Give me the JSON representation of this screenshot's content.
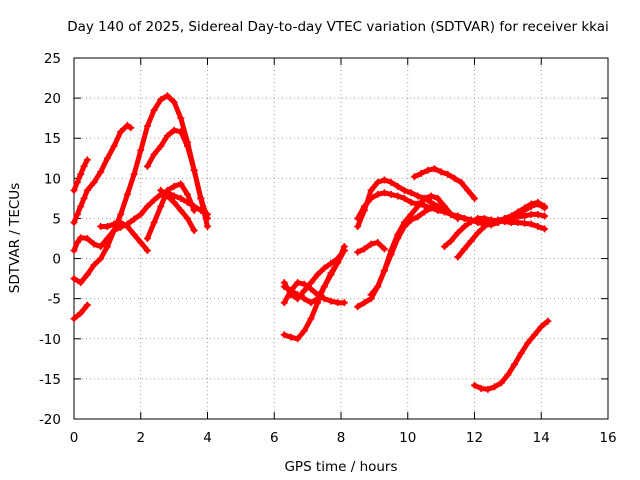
{
  "chart_data": {
    "type": "scatter",
    "title": "Day 140 of 2025, Sidereal Day-to-day VTEC variation (SDTVAR) for receiver kkai",
    "xlabel": "GPS time / hours",
    "ylabel": "SDTVAR / TECUs",
    "xlim": [
      0,
      16
    ],
    "ylim": [
      -20,
      25
    ],
    "xticks": [
      0,
      2,
      4,
      6,
      8,
      10,
      12,
      14,
      16
    ],
    "yticks": [
      -20,
      -15,
      -10,
      -5,
      0,
      5,
      10,
      15,
      20,
      25
    ],
    "grid": true,
    "color": "#ff0000",
    "series": [
      {
        "name": "s1",
        "x": [
          0.0,
          0.1,
          0.2,
          0.3,
          0.4
        ],
        "y": [
          8.5,
          9.5,
          10.5,
          11.5,
          12.3
        ]
      },
      {
        "name": "s2",
        "x": [
          0.0,
          0.1,
          0.2,
          0.3,
          0.4,
          0.6,
          0.8,
          1.0,
          1.2,
          1.4,
          1.6,
          1.7
        ],
        "y": [
          4.5,
          5.5,
          6.5,
          7.5,
          8.5,
          9.5,
          10.8,
          12.5,
          14.0,
          15.8,
          16.6,
          16.3
        ]
      },
      {
        "name": "s3",
        "x": [
          0.0,
          0.1,
          0.2,
          0.4,
          0.6,
          0.8,
          1.0,
          1.2,
          1.4,
          1.6,
          1.8,
          2.0,
          2.2,
          2.4,
          2.6,
          2.8,
          3.0,
          3.2,
          3.4,
          3.6,
          3.8,
          4.0
        ],
        "y": [
          1.0,
          2.0,
          2.6,
          2.5,
          1.8,
          1.5,
          2.5,
          3.5,
          3.9,
          4.3,
          4.9,
          5.5,
          6.5,
          7.3,
          8.0,
          8.2,
          7.8,
          7.5,
          7.0,
          6.5,
          6.0,
          5.5
        ]
      },
      {
        "name": "s4",
        "x": [
          0.0,
          0.2,
          0.4,
          0.6,
          0.8,
          1.0,
          1.2,
          1.4,
          1.6,
          1.8,
          2.0,
          2.2,
          2.4,
          2.6,
          2.8,
          3.0,
          3.2,
          3.4,
          3.6,
          3.8,
          4.0
        ],
        "y": [
          -2.5,
          -3.0,
          -2.0,
          -0.8,
          0.0,
          1.5,
          3.5,
          5.5,
          8.0,
          10.5,
          13.5,
          16.5,
          18.5,
          19.8,
          20.3,
          19.5,
          17.5,
          14.5,
          11.0,
          7.5,
          5.0
        ]
      },
      {
        "name": "s5",
        "x": [
          0.0,
          0.2,
          0.4
        ],
        "y": [
          -7.5,
          -6.8,
          -5.8
        ]
      },
      {
        "name": "s6",
        "x": [
          0.8,
          1.0,
          1.2,
          1.4,
          1.6,
          1.8,
          2.0,
          2.2
        ],
        "y": [
          4.0,
          4.0,
          4.3,
          4.5,
          4.0,
          3.0,
          2.0,
          1.0
        ]
      },
      {
        "name": "s7",
        "x": [
          2.2,
          2.4,
          2.6,
          2.8,
          3.0,
          3.2,
          3.4,
          3.6,
          3.8,
          4.0
        ],
        "y": [
          11.5,
          13.0,
          14.0,
          15.3,
          16.0,
          15.8,
          14.0,
          11.0,
          7.5,
          4.0
        ]
      },
      {
        "name": "s8",
        "x": [
          2.2,
          2.4,
          2.6,
          2.8,
          3.0,
          3.2,
          3.4,
          3.6
        ],
        "y": [
          2.5,
          4.5,
          6.5,
          8.5,
          9.0,
          9.3,
          8.0,
          6.0
        ]
      },
      {
        "name": "s9",
        "x": [
          2.6,
          2.8,
          3.0,
          3.2,
          3.4,
          3.6
        ],
        "y": [
          8.5,
          7.8,
          7.0,
          6.0,
          5.0,
          3.5
        ]
      },
      {
        "name": "s10",
        "x": [
          6.3,
          6.5,
          6.7,
          6.9,
          7.1,
          7.3,
          7.5,
          7.7,
          7.9,
          8.1
        ],
        "y": [
          -3.0,
          -4.5,
          -5.0,
          -4.0,
          -3.0,
          -2.0,
          -1.2,
          -0.6,
          0.0,
          1.0
        ]
      },
      {
        "name": "s11",
        "x": [
          6.3,
          6.5,
          6.7,
          6.9,
          7.1,
          7.3,
          7.5,
          7.7,
          7.9,
          8.1
        ],
        "y": [
          -5.5,
          -4.0,
          -3.0,
          -3.2,
          -3.8,
          -4.5,
          -5.0,
          -5.3,
          -5.5,
          -5.5
        ]
      },
      {
        "name": "s12",
        "x": [
          6.3,
          6.5,
          6.7,
          6.9,
          7.1,
          7.3,
          7.5,
          7.7,
          7.9,
          8.1
        ],
        "y": [
          -3.5,
          -4.0,
          -4.5,
          -5.0,
          -5.5,
          -5.0,
          -3.5,
          -2.0,
          -0.5,
          1.0
        ]
      },
      {
        "name": "s13",
        "x": [
          6.3,
          6.5,
          6.7,
          6.9,
          7.1,
          7.3,
          7.5,
          7.7,
          7.9,
          8.1
        ],
        "y": [
          -9.5,
          -9.8,
          -10.0,
          -9.0,
          -7.5,
          -5.5,
          -3.5,
          -1.8,
          -0.5,
          1.5
        ]
      },
      {
        "name": "s14",
        "x": [
          8.5,
          8.7,
          8.9,
          9.1,
          9.3,
          9.5,
          9.7,
          9.9,
          10.1,
          10.3,
          10.5,
          10.7,
          10.9,
          11.1,
          11.3,
          11.5,
          11.7,
          11.9,
          12.1,
          12.3,
          12.5,
          12.7,
          12.9,
          13.1,
          13.3,
          13.5,
          13.7,
          13.9,
          14.1
        ],
        "y": [
          5.0,
          6.5,
          7.5,
          8.0,
          8.2,
          8.0,
          7.8,
          7.5,
          7.0,
          6.8,
          6.6,
          6.3,
          6.0,
          5.8,
          5.5,
          5.3,
          5.0,
          4.8,
          4.6,
          4.5,
          4.4,
          4.5,
          4.8,
          5.0,
          5.5,
          6.0,
          6.5,
          6.8,
          6.3
        ]
      },
      {
        "name": "s15",
        "x": [
          8.5,
          8.7,
          8.9,
          9.1,
          9.3,
          9.5,
          9.7,
          9.9,
          10.1,
          10.3,
          10.5,
          10.7,
          10.9,
          11.1,
          11.3,
          11.5,
          11.7,
          11.9,
          12.1,
          12.3,
          12.5,
          12.7,
          12.9,
          13.1,
          13.3,
          13.5,
          13.7,
          13.9,
          14.1
        ],
        "y": [
          4.0,
          6.0,
          8.5,
          9.5,
          9.8,
          9.5,
          9.0,
          8.5,
          8.2,
          7.8,
          7.5,
          7.0,
          6.5,
          6.0,
          5.5,
          5.2,
          5.0,
          4.8,
          4.5,
          4.3,
          4.2,
          4.5,
          5.0,
          5.3,
          5.8,
          6.3,
          6.8,
          7.0,
          6.5
        ]
      },
      {
        "name": "s16",
        "x": [
          8.5,
          8.7,
          8.9,
          9.1,
          9.3
        ],
        "y": [
          0.8,
          1.2,
          1.8,
          2.0,
          1.2
        ]
      },
      {
        "name": "s17",
        "x": [
          8.5,
          8.7,
          8.9,
          9.1,
          9.3,
          9.5,
          9.7,
          9.9,
          10.1,
          10.3,
          10.5,
          10.7,
          10.9,
          11.1,
          11.3,
          11.5
        ],
        "y": [
          -6.0,
          -5.5,
          -5.0,
          -3.5,
          -1.5,
          0.5,
          2.5,
          4.0,
          4.8,
          5.2,
          5.8,
          6.3,
          6.5,
          6.0,
          5.5,
          5.0
        ]
      },
      {
        "name": "s18",
        "x": [
          8.9,
          9.1,
          9.3,
          9.5,
          9.7,
          9.9,
          10.1,
          10.3,
          10.5,
          10.7,
          10.9,
          11.1,
          11.3
        ],
        "y": [
          -4.5,
          -3.5,
          -1.5,
          1.0,
          3.0,
          4.5,
          5.5,
          6.5,
          7.5,
          7.8,
          7.5,
          6.5,
          5.5
        ]
      },
      {
        "name": "s19",
        "x": [
          10.2,
          10.4,
          10.6,
          10.8,
          11.0,
          11.2,
          11.4,
          11.6,
          11.8,
          12.0
        ],
        "y": [
          10.2,
          10.6,
          11.0,
          11.2,
          10.8,
          10.5,
          10.0,
          9.5,
          8.5,
          7.5
        ]
      },
      {
        "name": "s20",
        "x": [
          11.1,
          11.3,
          11.5,
          11.7,
          11.9,
          12.1,
          12.3,
          12.5,
          12.7,
          12.9,
          13.1,
          13.3,
          13.5,
          13.7,
          13.9,
          14.1
        ],
        "y": [
          1.5,
          2.2,
          3.2,
          4.0,
          4.6,
          5.0,
          5.0,
          4.8,
          4.7,
          4.6,
          4.5,
          4.5,
          4.4,
          4.3,
          4.0,
          3.7
        ]
      },
      {
        "name": "s21",
        "x": [
          11.5,
          11.7,
          11.9,
          12.1,
          12.3,
          12.5,
          12.7,
          12.9,
          13.1,
          13.3,
          13.5,
          13.7,
          13.9,
          14.1
        ],
        "y": [
          0.2,
          1.2,
          2.2,
          3.2,
          4.0,
          4.5,
          4.8,
          4.9,
          5.0,
          5.2,
          5.3,
          5.5,
          5.5,
          5.3
        ]
      },
      {
        "name": "s22",
        "x": [
          12.0,
          12.2,
          12.4,
          12.6,
          12.8,
          13.0,
          13.2,
          13.4,
          13.6,
          13.8,
          14.0,
          14.2
        ],
        "y": [
          -15.8,
          -16.2,
          -16.3,
          -16.0,
          -15.5,
          -14.5,
          -13.2,
          -11.8,
          -10.5,
          -9.5,
          -8.5,
          -7.8
        ]
      }
    ]
  }
}
